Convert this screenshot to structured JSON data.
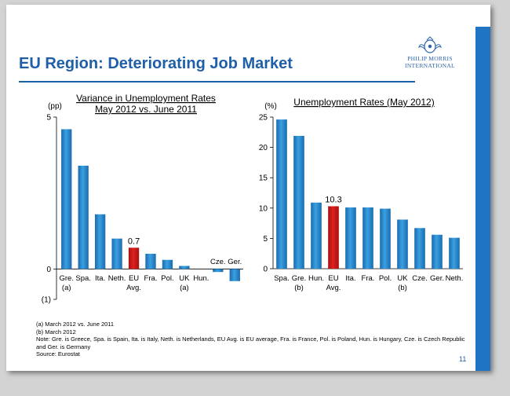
{
  "slide": {
    "title": "EU Region: Deteriorating Job Market",
    "logo": {
      "line1": "PHILIP MORRIS",
      "line2": "INTERNATIONAL"
    },
    "footnotes": [
      "(a)  March 2012 vs. June 2011",
      "(b)  March 2012",
      "Note: Gre. is Greece, Spa. is Spain, Ita. is Italy, Neth. is Netherlands, EU Avg. is EU average, Fra. is France, Pol. is Poland, Hun. is Hungary, Cze. is Czech Republic and Ger. is Germany",
      "Source: Eurostat"
    ],
    "page_number": "11",
    "colors": {
      "bar": "#3aa0e0",
      "highlight": "#e02020",
      "title": "#1f5fa8",
      "side_band": "#1f74c4"
    }
  },
  "chart_data": [
    {
      "type": "bar",
      "title": "Variance in Unemployment Rates",
      "subtitle": "May 2012 vs. June 2011",
      "ylabel": "(pp)",
      "ylim": [
        -1,
        5
      ],
      "yticks": [
        "5",
        "0",
        "(1)"
      ],
      "categories": [
        "Gre.",
        "Spa.",
        "Ita.",
        "Neth.",
        "EU",
        "Fra.",
        "Pol.",
        "UK",
        "Hun.",
        "Cze.",
        "Ger."
      ],
      "category_sublabels": [
        "(a)",
        "",
        "",
        "",
        "Avg.",
        "",
        "",
        "(a)",
        "",
        "",
        ""
      ],
      "values": [
        4.6,
        3.4,
        1.8,
        1.0,
        0.7,
        0.5,
        0.3,
        0.1,
        0.0,
        -0.1,
        -0.4
      ],
      "highlight_index": 4,
      "data_labels": [
        {
          "index": 4,
          "text": "0.7"
        }
      ]
    },
    {
      "type": "bar",
      "title": "Unemployment Rates (May 2012)",
      "ylabel": "(%)",
      "ylim": [
        0,
        25
      ],
      "yticks": [
        "25",
        "20",
        "15",
        "10",
        "5",
        "0"
      ],
      "categories": [
        "Spa.",
        "Gre.",
        "Hun.",
        "EU",
        "Ita.",
        "Fra.",
        "Pol.",
        "UK",
        "Cze.",
        "Ger.",
        "Neth."
      ],
      "category_sublabels": [
        "",
        "(b)",
        "",
        "Avg.",
        "",
        "",
        "",
        "(b)",
        "",
        "",
        ""
      ],
      "values": [
        24.6,
        21.9,
        10.9,
        10.3,
        10.1,
        10.1,
        9.9,
        8.1,
        6.7,
        5.6,
        5.1
      ],
      "highlight_index": 3,
      "data_labels": [
        {
          "index": 3,
          "text": "10.3"
        }
      ]
    }
  ]
}
